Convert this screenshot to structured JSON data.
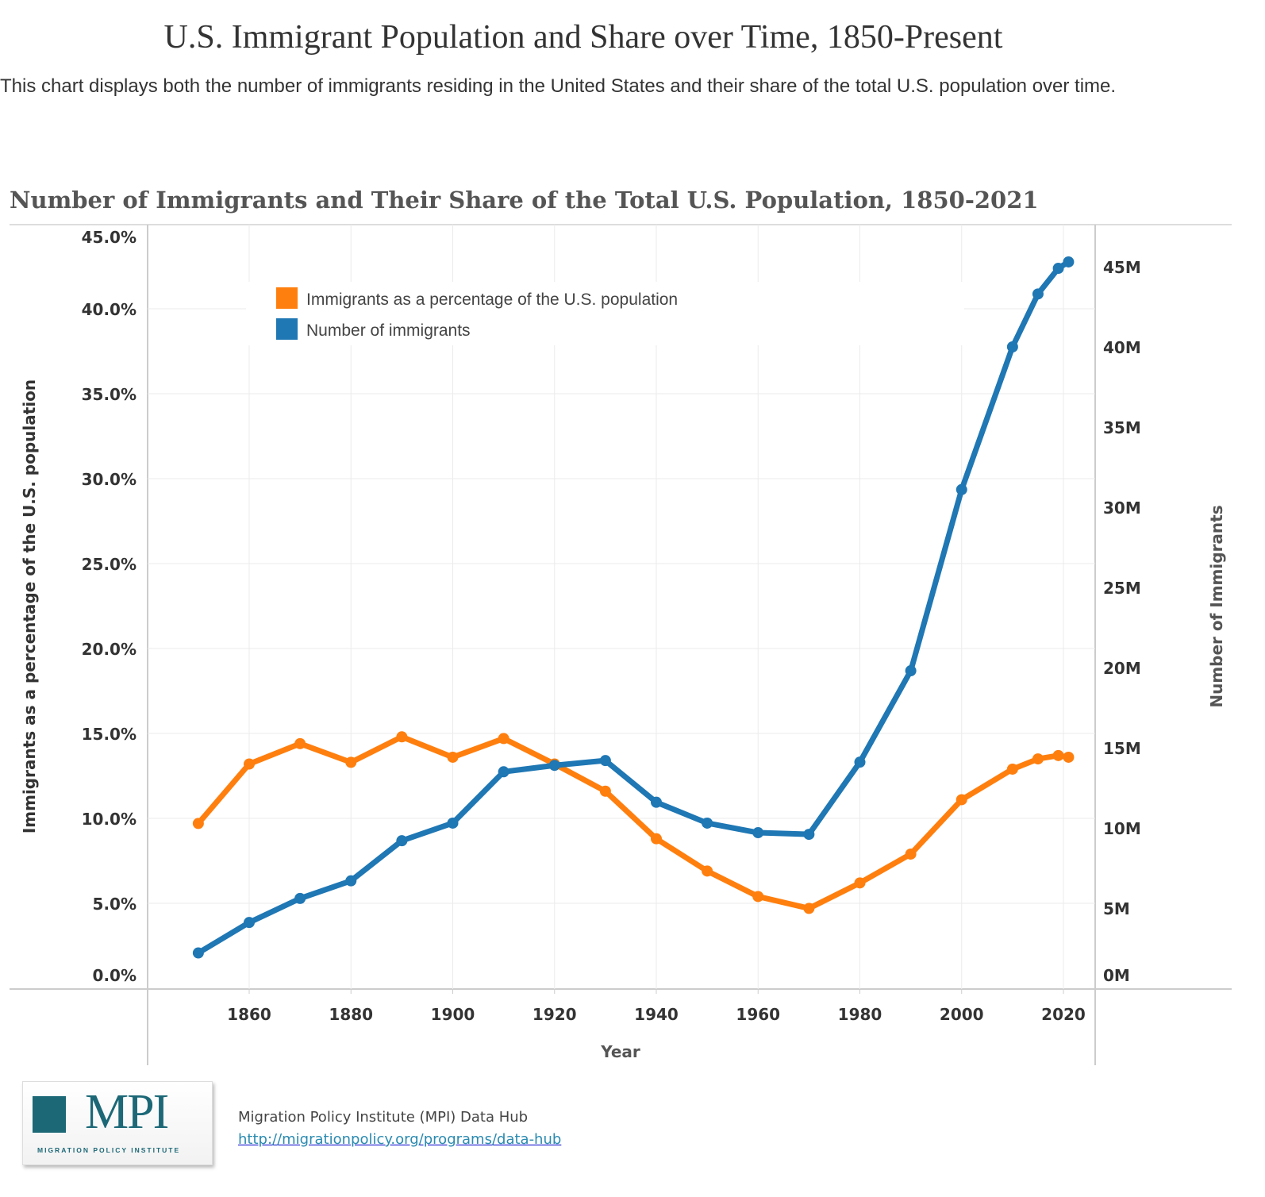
{
  "header": {
    "title": "U.S. Immigrant Population and Share over Time, 1850-Present",
    "description": "This chart displays both the number of immigrants residing in the United States and their share of the total U.S. population over time."
  },
  "chart_data": {
    "type": "line",
    "title": "Number of Immigrants and Their Share of the Total U.S. Population, 1850-2021",
    "xlabel": "Year",
    "ylabel_left": "Immigrants as a percentage of the U.S. population",
    "ylabel_right": "Number of Immigrants",
    "x": [
      1850,
      1860,
      1870,
      1880,
      1890,
      1900,
      1910,
      1920,
      1930,
      1940,
      1950,
      1960,
      1970,
      1980,
      1990,
      2000,
      2010,
      2015,
      2019,
      2021
    ],
    "x_ticks": [
      "1860",
      "1880",
      "1900",
      "1920",
      "1940",
      "1960",
      "1980",
      "2000",
      "2020"
    ],
    "y_left_ticks": [
      "0.0%",
      "5.0%",
      "10.0%",
      "15.0%",
      "20.0%",
      "25.0%",
      "30.0%",
      "35.0%",
      "40.0%",
      "45.0%"
    ],
    "y_right_ticks": [
      "0M",
      "5M",
      "10M",
      "15M",
      "20M",
      "25M",
      "30M",
      "35M",
      "40M",
      "45M"
    ],
    "ylim_left": [
      0,
      45
    ],
    "ylim_right": [
      0,
      47
    ],
    "grid": true,
    "legend_position": "top-left",
    "series": [
      {
        "name": "Immigrants as a percentage of the U.S. population",
        "axis": "left",
        "color": "#ff7f0e",
        "values": [
          9.7,
          13.2,
          14.4,
          13.3,
          14.8,
          13.6,
          14.7,
          13.2,
          11.6,
          8.8,
          6.9,
          5.4,
          4.7,
          6.2,
          7.9,
          11.1,
          12.9,
          13.5,
          13.7,
          13.6
        ]
      },
      {
        "name": "Number of immigrants",
        "axis": "right",
        "color": "#1f77b4",
        "values": [
          2.2,
          4.1,
          5.6,
          6.7,
          9.2,
          10.3,
          13.5,
          13.9,
          14.2,
          11.6,
          10.3,
          9.7,
          9.6,
          14.1,
          19.8,
          31.1,
          40.0,
          43.3,
          44.9,
          45.3
        ]
      }
    ]
  },
  "footer": {
    "logo_text": "MPI",
    "logo_subtitle": "MIGRATION POLICY INSTITUTE",
    "source": "Migration Policy Institute (MPI) Data Hub",
    "link": "http://migrationpolicy.org/programs/data-hub"
  }
}
